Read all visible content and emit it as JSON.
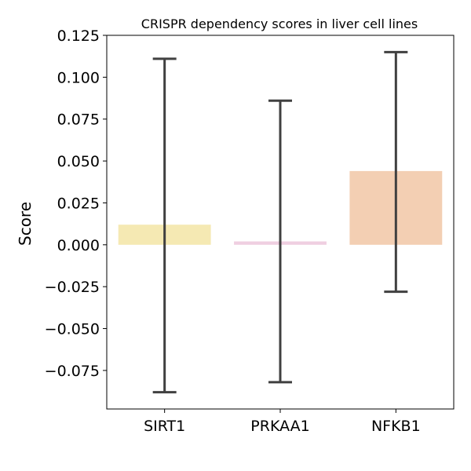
{
  "chart_data": {
    "type": "bar",
    "title": "CRISPR dependency scores in liver cell lines",
    "xlabel": "",
    "ylabel": "Score",
    "categories": [
      "SIRT1",
      "PRKAA1",
      "NFKB1"
    ],
    "values": [
      0.012,
      0.002,
      0.044
    ],
    "error_low": [
      -0.088,
      -0.082,
      -0.028
    ],
    "error_high": [
      0.111,
      0.086,
      0.115
    ],
    "colors": [
      "#f5e9b3",
      "#efcfe1",
      "#f3cfb3"
    ],
    "error_color": "#404040",
    "ylim": [
      -0.098,
      0.125
    ],
    "yticks": [
      -0.075,
      -0.05,
      -0.025,
      0.0,
      0.025,
      0.05,
      0.075,
      0.1,
      0.125
    ],
    "ytick_labels": [
      "−0.075",
      "−0.050",
      "−0.025",
      "0.000",
      "0.025",
      "0.050",
      "0.075",
      "0.100",
      "0.125"
    ],
    "grid": false,
    "legend": "none"
  }
}
